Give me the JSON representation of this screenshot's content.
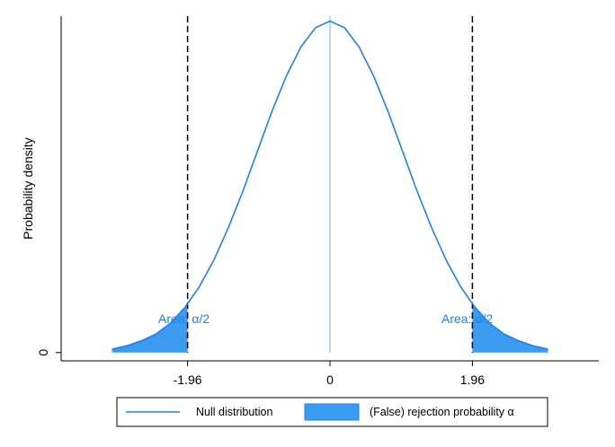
{
  "chart_data": {
    "type": "area",
    "title": "",
    "xlabel": "",
    "ylabel": "Probability density",
    "xlim": [
      -3.7,
      3.7
    ],
    "ylim": [
      -0.01,
      0.405
    ],
    "x_ticks": [
      {
        "value": -1.96,
        "label": "-1.96"
      },
      {
        "value": 0,
        "label": "0"
      },
      {
        "value": 1.96,
        "label": "1.96"
      }
    ],
    "y_ticks": [
      {
        "value": 0,
        "label": "0"
      }
    ],
    "series": [
      {
        "name": "Null distribution",
        "kind": "line",
        "x": [
          -3.0,
          -2.8,
          -2.6,
          -2.4,
          -2.2,
          -2.0,
          -1.8,
          -1.6,
          -1.4,
          -1.2,
          -1.0,
          -0.8,
          -0.6,
          -0.4,
          -0.2,
          0.0,
          0.2,
          0.4,
          0.6,
          0.8,
          1.0,
          1.2,
          1.4,
          1.6,
          1.8,
          2.0,
          2.2,
          2.4,
          2.6,
          2.8,
          3.0
        ],
        "y": [
          0.004,
          0.008,
          0.014,
          0.022,
          0.035,
          0.054,
          0.079,
          0.111,
          0.15,
          0.194,
          0.242,
          0.29,
          0.333,
          0.368,
          0.391,
          0.399,
          0.391,
          0.368,
          0.333,
          0.29,
          0.242,
          0.194,
          0.15,
          0.111,
          0.079,
          0.054,
          0.035,
          0.022,
          0.014,
          0.008,
          0.004
        ]
      },
      {
        "name": "(False) rejection probability α",
        "kind": "shaded-area",
        "regions": [
          {
            "from": -3.0,
            "to": -1.96
          },
          {
            "from": 1.96,
            "to": 3.0
          }
        ]
      }
    ],
    "reference_lines": [
      {
        "x": -1.96,
        "style": "dashed",
        "color": "#000000"
      },
      {
        "x": 0,
        "style": "solid",
        "color": "#6cb4ee"
      },
      {
        "x": 1.96,
        "style": "dashed",
        "color": "#000000"
      }
    ],
    "annotations": [
      {
        "text": "Area: α/2",
        "side": "left"
      },
      {
        "text": "Area: α/2",
        "side": "right"
      }
    ],
    "legend": {
      "position": "bottom",
      "entries": [
        {
          "label": "Null distribution",
          "symbol": "line"
        },
        {
          "label": "(False) rejection probability α",
          "symbol": "box"
        }
      ]
    },
    "grid": false,
    "colors": {
      "curve": "#1f82e8",
      "fill": "#3a9bf0",
      "center_line": "#6cb4ee",
      "annotation": "#1f82e8"
    }
  }
}
